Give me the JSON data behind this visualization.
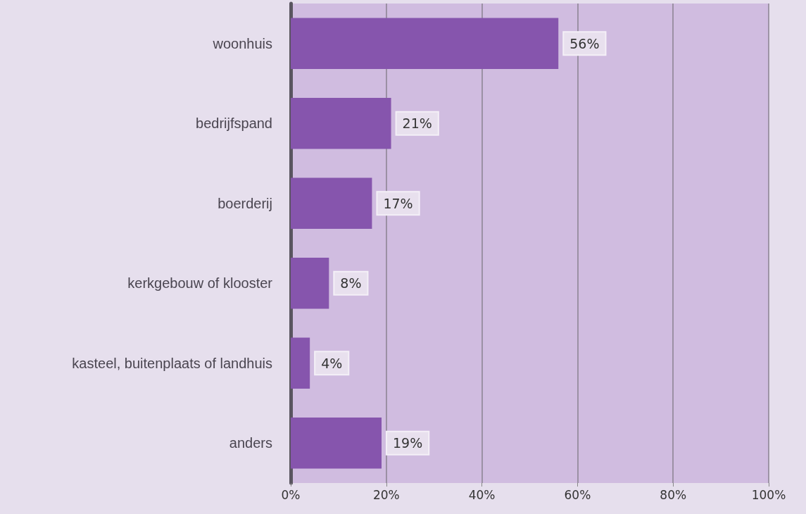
{
  "chart_data": {
    "type": "bar",
    "orientation": "horizontal",
    "categories": [
      "woonhuis",
      "bedrijfspand",
      "boerderij",
      "kerkgebouw of klooster",
      "kasteel, buitenplaats of landhuis",
      "anders"
    ],
    "values": [
      56,
      21,
      17,
      8,
      4,
      19
    ],
    "value_labels": [
      "56%",
      "21%",
      "17%",
      "8%",
      "4%",
      "19%"
    ],
    "color": "#8655ad",
    "xlim": [
      0,
      100
    ],
    "xticks": [
      {
        "value": 0,
        "label": "0%"
      },
      {
        "value": 20,
        "label": "20%"
      },
      {
        "value": 40,
        "label": "40%"
      },
      {
        "value": 60,
        "label": "60%"
      },
      {
        "value": 80,
        "label": "80%"
      },
      {
        "value": 100,
        "label": "100%"
      }
    ],
    "grid": "x"
  }
}
